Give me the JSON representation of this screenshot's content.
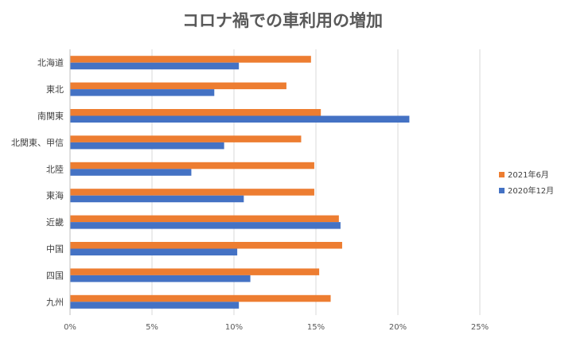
{
  "chart_data": {
    "type": "bar",
    "orientation": "horizontal",
    "title": "コロナ禍での車利用の増加",
    "xlabel": "",
    "ylabel": "",
    "categories": [
      "北海道",
      "東北",
      "南関東",
      "北関東、甲信",
      "北陸",
      "東海",
      "近畿",
      "中国",
      "四国",
      "九州"
    ],
    "series": [
      {
        "name": "2021年6月",
        "color": "#ED7D31",
        "values": [
          14.7,
          13.2,
          15.3,
          14.1,
          14.9,
          14.9,
          16.4,
          16.6,
          15.2,
          15.9
        ]
      },
      {
        "name": "2020年12月",
        "color": "#4472C4",
        "values": [
          10.3,
          8.8,
          20.7,
          9.4,
          7.4,
          10.6,
          16.5,
          10.2,
          11.0,
          10.3
        ]
      }
    ],
    "xlim": [
      0,
      25
    ],
    "xticks": [
      "0%",
      "5%",
      "10%",
      "15%",
      "20%",
      "25%"
    ],
    "grid": true,
    "legend_position": "right"
  }
}
